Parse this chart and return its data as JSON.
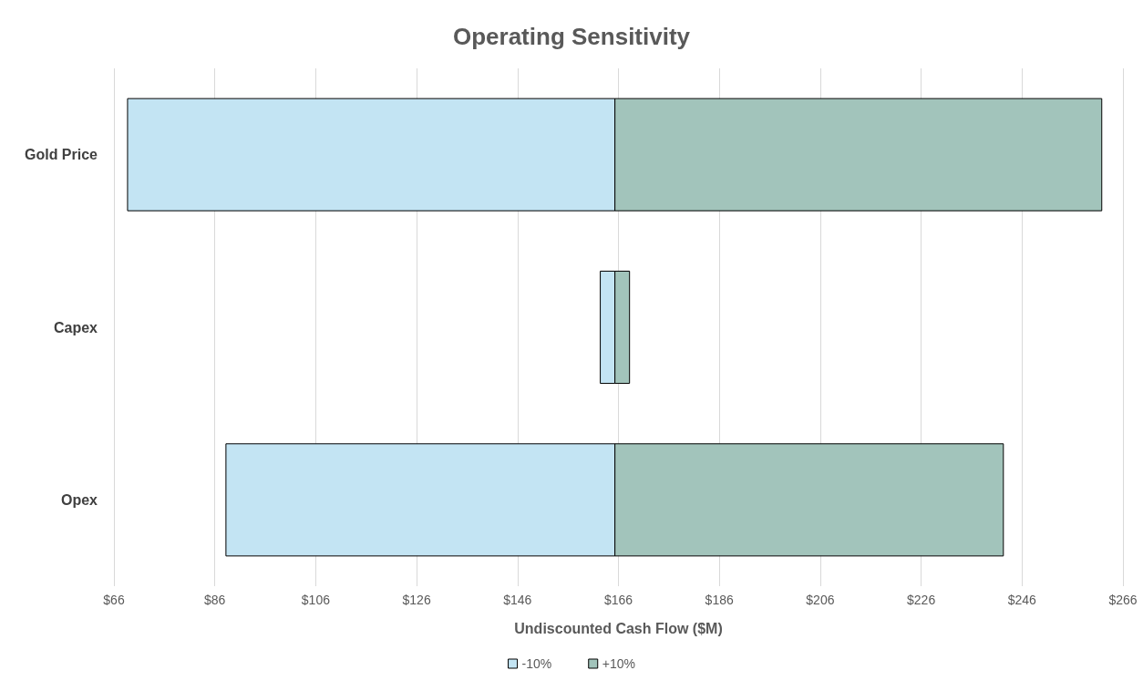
{
  "chart_data": {
    "type": "bar",
    "orientation": "horizontal",
    "title": "Operating Sensitivity",
    "xlabel": "Undiscounted Cash Flow ($M)",
    "categories": [
      "Gold Price",
      "Capex",
      "Opex"
    ],
    "series": [
      {
        "name": "-10%",
        "color": "#c3e4f3",
        "base": [
          68.7,
          162.4,
          88.2
        ],
        "values": [
          96.6,
          2.9,
          77.1
        ]
      },
      {
        "name": "+10%",
        "color": "#a2c4bb",
        "base": [
          165.3,
          165.3,
          165.3
        ],
        "values": [
          96.5,
          2.9,
          77.0
        ]
      }
    ],
    "xlim": [
      66,
      266
    ],
    "xticks": [
      {
        "value": 66,
        "label": "$66"
      },
      {
        "value": 86,
        "label": "$86"
      },
      {
        "value": 106,
        "label": "$106"
      },
      {
        "value": 126,
        "label": "$126"
      },
      {
        "value": 146,
        "label": "$146"
      },
      {
        "value": 166,
        "label": "$166"
      },
      {
        "value": 186,
        "label": "$186"
      },
      {
        "value": 206,
        "label": "$206"
      },
      {
        "value": 226,
        "label": "$226"
      },
      {
        "value": 246,
        "label": "$246"
      },
      {
        "value": 266,
        "label": "$266"
      }
    ],
    "grid": "x",
    "legend": "bottom"
  }
}
